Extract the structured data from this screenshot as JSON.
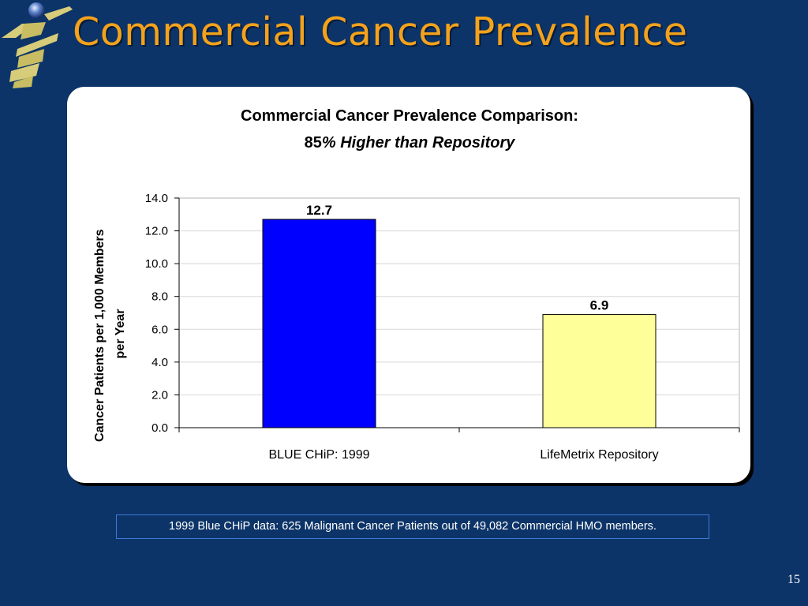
{
  "slide": {
    "title": "Commercial Cancer Prevalence",
    "footnote": "1999 Blue CHiP data:  625 Malignant Cancer Patients out of 49,082 Commercial HMO members.",
    "page_number": "15",
    "colors": {
      "background": "#0c3468",
      "title": "#f4a21c",
      "footnote_border": "#3f78d6"
    }
  },
  "chart_data": {
    "type": "bar",
    "title": "Commercial Cancer Prevalence Comparison:",
    "subtitle_prefix": "85",
    "subtitle_rest": "% Higher than Repository",
    "ylabel_line1": "Cancer Patients per 1,000 Members",
    "ylabel_line2": "per Year",
    "categories": [
      "BLUE CHiP:  1999",
      "LifeMetrix Repository"
    ],
    "values": [
      12.7,
      6.9
    ],
    "value_labels": [
      "12.7",
      "6.9"
    ],
    "bar_colors": [
      "#0000ff",
      "#ffff99"
    ],
    "ylim": [
      0,
      14
    ],
    "yticks": [
      "0.0",
      "2.0",
      "4.0",
      "6.0",
      "8.0",
      "10.0",
      "12.0",
      "14.0"
    ],
    "grid": true,
    "legend": "none"
  }
}
